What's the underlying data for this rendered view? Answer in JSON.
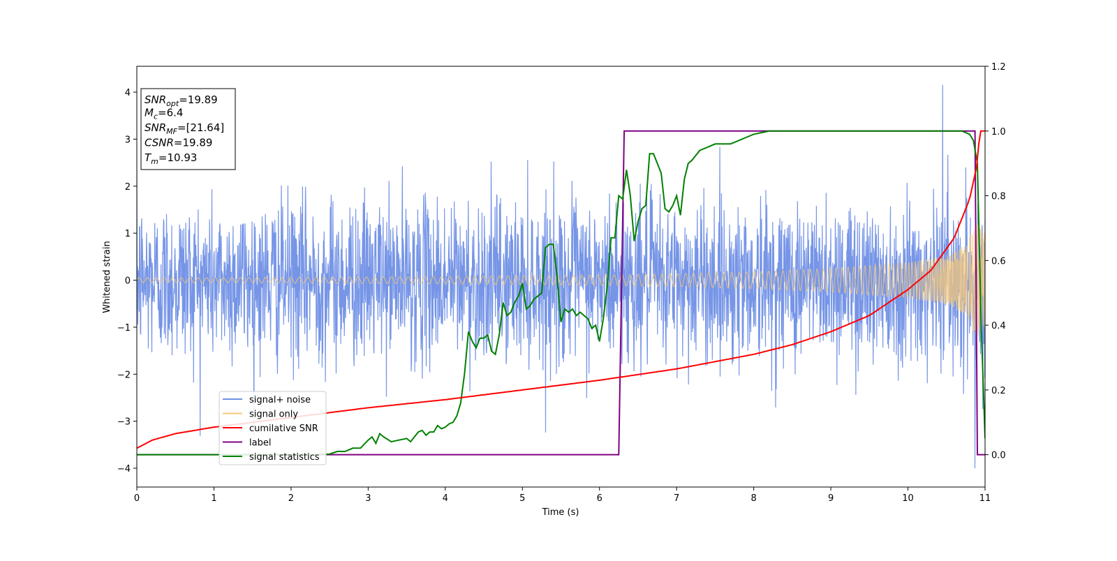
{
  "chart_data": {
    "type": "line",
    "xlabel": "Time (s)",
    "ylabel": "Whitened strain",
    "xlim": [
      0,
      11
    ],
    "ylim_left": [
      -4.4,
      4.55
    ],
    "ylim_right": [
      -0.1,
      1.2
    ],
    "x_ticks": [
      0,
      1,
      2,
      3,
      4,
      5,
      6,
      7,
      8,
      9,
      10,
      11
    ],
    "y_left_ticks": [
      -4,
      -3,
      -2,
      -1,
      0,
      1,
      2,
      3,
      4
    ],
    "y_right_ticks": [
      0.0,
      0.2,
      0.4,
      0.6,
      0.8,
      1.0,
      1.2
    ],
    "grid": false,
    "legend_position": "lower-left",
    "colors": {
      "signal_noise": "#6f8fe6",
      "signal_only": "#f5c87a",
      "cumulative_snr": "#ff0000",
      "label": "#800080",
      "signal_statistics": "#008000"
    },
    "annotation": {
      "lines": [
        {
          "main": "SNR",
          "sub": "opt",
          "value": "=19.89"
        },
        {
          "main": "M",
          "sub": "c",
          "value": "=6.4"
        },
        {
          "main": "SNR",
          "sub": "MF",
          "value": "=[21.64]"
        },
        {
          "main": "CSNR",
          "sub": "",
          "value": "=19.89"
        },
        {
          "main": "T",
          "sub": "m",
          "value": "=10.93"
        }
      ]
    },
    "series": [
      {
        "name": "signal+ noise",
        "axis": "left",
        "description_values": "noise band approx ±1.5 with spikes up to ±3.3; max 4.15 at x≈10.45, min -4.0 at x≈10.87"
      },
      {
        "name": "signal only",
        "axis": "left",
        "envelope": {
          "x": [
            0,
            2,
            4,
            6,
            7,
            8,
            9,
            10,
            10.5,
            10.75,
            10.9,
            11.0
          ],
          "amplitude": [
            0.05,
            0.06,
            0.08,
            0.11,
            0.14,
            0.18,
            0.25,
            0.38,
            0.52,
            0.75,
            1.3,
            1.0
          ]
        }
      },
      {
        "name": "cumilative SNR",
        "axis": "right",
        "x": [
          0,
          0.2,
          0.5,
          1,
          2,
          3,
          4,
          5,
          6,
          7,
          8,
          8.5,
          9,
          9.5,
          10,
          10.3,
          10.6,
          10.8,
          10.9,
          10.93,
          11.0
        ],
        "y": [
          0.02,
          0.045,
          0.065,
          0.085,
          0.115,
          0.145,
          0.17,
          0.2,
          0.23,
          0.265,
          0.31,
          0.34,
          0.38,
          0.43,
          0.51,
          0.57,
          0.67,
          0.79,
          0.9,
          1.0,
          1.0
        ]
      },
      {
        "name": "label",
        "axis": "right",
        "x": [
          0,
          6.25,
          6.32,
          10.87,
          10.9,
          11.0
        ],
        "y": [
          0,
          0,
          1,
          1,
          0,
          0
        ]
      },
      {
        "name": "signal statistics",
        "axis": "right",
        "x": [
          0,
          2.2,
          2.5,
          2.6,
          2.7,
          2.8,
          2.9,
          3.0,
          3.05,
          3.1,
          3.15,
          3.2,
          3.3,
          3.4,
          3.5,
          3.55,
          3.6,
          3.65,
          3.7,
          3.75,
          3.8,
          3.85,
          3.9,
          3.95,
          4.0,
          4.05,
          4.1,
          4.15,
          4.2,
          4.25,
          4.3,
          4.35,
          4.4,
          4.45,
          4.5,
          4.55,
          4.6,
          4.65,
          4.7,
          4.75,
          4.8,
          4.85,
          4.9,
          4.95,
          5.0,
          5.05,
          5.1,
          5.15,
          5.2,
          5.25,
          5.3,
          5.35,
          5.4,
          5.45,
          5.5,
          5.55,
          5.6,
          5.65,
          5.7,
          5.75,
          5.8,
          5.85,
          5.9,
          5.95,
          6.0,
          6.05,
          6.1,
          6.15,
          6.2,
          6.25,
          6.3,
          6.35,
          6.4,
          6.45,
          6.5,
          6.55,
          6.6,
          6.65,
          6.7,
          6.75,
          6.8,
          6.85,
          6.9,
          6.95,
          7.0,
          7.05,
          7.1,
          7.15,
          7.2,
          7.3,
          7.4,
          7.5,
          7.6,
          7.7,
          7.8,
          7.9,
          8.0,
          8.1,
          8.2,
          8.5,
          9.0,
          9.5,
          10.0,
          10.5,
          10.7,
          10.8,
          10.85,
          10.9,
          10.95,
          11.0
        ],
        "y": [
          0.0,
          0.0,
          0.002,
          0.01,
          0.01,
          0.02,
          0.02,
          0.045,
          0.055,
          0.035,
          0.065,
          0.055,
          0.04,
          0.045,
          0.05,
          0.04,
          0.055,
          0.07,
          0.075,
          0.06,
          0.07,
          0.07,
          0.09,
          0.08,
          0.085,
          0.095,
          0.1,
          0.12,
          0.16,
          0.25,
          0.38,
          0.35,
          0.33,
          0.36,
          0.36,
          0.37,
          0.32,
          0.31,
          0.37,
          0.47,
          0.43,
          0.44,
          0.47,
          0.49,
          0.53,
          0.45,
          0.46,
          0.48,
          0.49,
          0.5,
          0.64,
          0.65,
          0.65,
          0.55,
          0.41,
          0.45,
          0.44,
          0.45,
          0.43,
          0.44,
          0.43,
          0.42,
          0.39,
          0.4,
          0.35,
          0.42,
          0.52,
          0.67,
          0.67,
          0.8,
          0.79,
          0.88,
          0.8,
          0.66,
          0.72,
          0.76,
          0.77,
          0.93,
          0.93,
          0.9,
          0.87,
          0.76,
          0.75,
          0.77,
          0.8,
          0.74,
          0.85,
          0.9,
          0.91,
          0.94,
          0.95,
          0.96,
          0.96,
          0.96,
          0.97,
          0.98,
          0.99,
          0.995,
          1.0,
          1.0,
          1.0,
          1.0,
          1.0,
          1.0,
          1.0,
          0.99,
          0.97,
          0.9,
          0.4,
          0.05
        ]
      }
    ]
  }
}
